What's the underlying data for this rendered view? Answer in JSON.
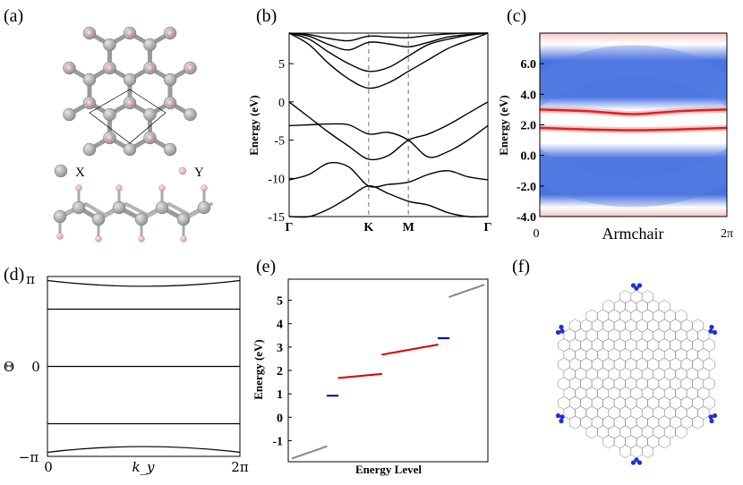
{
  "panels": {
    "a": {
      "label": "(a)",
      "legend": [
        {
          "text": "X",
          "color": "#a8a8a8"
        },
        {
          "text": "Y",
          "color": "#e8b8b8"
        }
      ]
    },
    "b": {
      "label": "(b)"
    },
    "c": {
      "label": "(c)"
    },
    "d": {
      "label": "(d)"
    },
    "e": {
      "label": "(e)"
    },
    "f": {
      "label": "(f)"
    }
  },
  "chart_data": [
    {
      "id": "b",
      "type": "line",
      "title": "",
      "ylabel": "Energy (eV)",
      "xlabel": "",
      "ylim": [
        -15,
        9
      ],
      "yticks": [
        "5",
        "0",
        "-5",
        "-10",
        "-15"
      ],
      "kpoints": [
        "Γ",
        "K",
        "M",
        "Γ"
      ],
      "kpoint_positions": [
        0,
        0.4,
        0.6,
        1.0
      ],
      "series": [
        {
          "name": "band1",
          "x": [
            0,
            0.1,
            0.2,
            0.3,
            0.4,
            0.5,
            0.6,
            0.7,
            0.8,
            0.9,
            1.0
          ],
          "y": [
            0,
            -2.0,
            -4.0,
            -5.8,
            -7.5,
            -7.0,
            -5.0,
            -4.2,
            -3.0,
            -1.5,
            0
          ]
        },
        {
          "name": "band2",
          "x": [
            0,
            0.1,
            0.2,
            0.3,
            0.4,
            0.5,
            0.6,
            0.7,
            0.8,
            0.9,
            1.0
          ],
          "y": [
            -3.1,
            -3.0,
            -2.9,
            -3.0,
            -4.2,
            -4.0,
            -5.0,
            -7.2,
            -6.5,
            -5.0,
            -3.1
          ]
        },
        {
          "name": "band3",
          "x": [
            0,
            0.1,
            0.2,
            0.3,
            0.4,
            0.5,
            0.6,
            0.7,
            0.8,
            0.9,
            1.0
          ],
          "y": [
            -10.2,
            -9.5,
            -8.0,
            -8.5,
            -11.0,
            -10.8,
            -10.5,
            -9.5,
            -9.0,
            -9.8,
            -10.2
          ]
        },
        {
          "name": "band4",
          "x": [
            0,
            0.1,
            0.2,
            0.3,
            0.4,
            0.5,
            0.6,
            0.7,
            0.8,
            0.9,
            1.0
          ],
          "y": [
            -15.0,
            -15.0,
            -14.0,
            -12.5,
            -11.0,
            -12.0,
            -13.0,
            -13.5,
            -14.5,
            -15.0,
            -15.0
          ]
        },
        {
          "name": "cb1",
          "x": [
            0,
            0.1,
            0.2,
            0.3,
            0.4,
            0.5,
            0.6,
            0.7,
            0.8,
            0.9,
            1.0
          ],
          "y": [
            9,
            7.5,
            5.0,
            3.0,
            1.8,
            2.5,
            4.0,
            5.5,
            7.0,
            8.0,
            9
          ]
        },
        {
          "name": "cb2",
          "x": [
            0,
            0.1,
            0.2,
            0.3,
            0.4,
            0.5,
            0.6,
            0.7,
            0.8,
            0.9,
            1.0
          ],
          "y": [
            9,
            8.2,
            6.5,
            5.0,
            4.0,
            4.5,
            6.0,
            7.5,
            8.2,
            8.7,
            9
          ]
        },
        {
          "name": "cb3",
          "x": [
            0,
            0.1,
            0.2,
            0.3,
            0.4,
            0.5,
            0.6,
            0.7,
            0.8,
            0.9,
            1.0
          ],
          "y": [
            9,
            8.6,
            7.5,
            6.8,
            7.8,
            7.6,
            7.2,
            7.8,
            8.5,
            8.8,
            9
          ]
        },
        {
          "name": "cb4",
          "x": [
            0,
            0.1,
            0.2,
            0.3,
            0.4,
            0.5,
            0.6,
            0.7,
            0.8,
            0.9,
            1.0
          ],
          "y": [
            9,
            8.8,
            8.3,
            8.0,
            8.6,
            8.5,
            8.4,
            8.7,
            8.9,
            9.0,
            9
          ]
        }
      ]
    },
    {
      "id": "c",
      "type": "heatmap",
      "ylabel": "Energy (eV)",
      "xlabel": "Armchair",
      "xticks": [
        "0",
        "2π"
      ],
      "yticks": [
        "6.0",
        "4.0",
        "2.0",
        "0.0",
        "-2.0",
        "-4.0"
      ],
      "ylim": [
        -4,
        8
      ],
      "edge_states": [
        {
          "x": [
            0,
            0.25,
            0.5,
            0.75,
            1.0
          ],
          "y": [
            3.0,
            2.9,
            2.7,
            2.9,
            3.0
          ]
        },
        {
          "x": [
            0,
            0.25,
            0.5,
            0.75,
            1.0
          ],
          "y": [
            1.8,
            1.7,
            1.65,
            1.7,
            1.8
          ]
        }
      ]
    },
    {
      "id": "d",
      "type": "line",
      "ylabel": "Θ",
      "xlabel": "k_y",
      "xticks": [
        "0",
        "2π"
      ],
      "yticks": [
        "π",
        "0",
        "−π"
      ],
      "ylim": [
        -3.1416,
        3.1416
      ],
      "series": [
        {
          "name": "w1",
          "x": [
            0,
            0.5,
            1.0
          ],
          "y": [
            3.0,
            2.8,
            3.0
          ]
        },
        {
          "name": "w2",
          "x": [
            0,
            0.5,
            1.0
          ],
          "y": [
            2.0,
            2.0,
            2.0
          ]
        },
        {
          "name": "w3",
          "x": [
            0,
            0.5,
            1.0
          ],
          "y": [
            0,
            0,
            0
          ]
        },
        {
          "name": "w4",
          "x": [
            0,
            0.5,
            1.0
          ],
          "y": [
            -2.0,
            -2.0,
            -2.0
          ]
        },
        {
          "name": "w5",
          "x": [
            0,
            0.5,
            1.0
          ],
          "y": [
            -3.0,
            -2.8,
            -3.0
          ]
        }
      ]
    },
    {
      "id": "e",
      "type": "scatter",
      "ylabel": "Energy (eV)",
      "xlabel": "Energy Level",
      "yticks": [
        "5",
        "4",
        "3",
        "2",
        "1",
        "0",
        "-1"
      ],
      "ylim": [
        -1.9,
        5.9
      ],
      "series": [
        {
          "name": "bulk-low",
          "color": "#888888",
          "x": [
            0,
            30
          ],
          "y": [
            -1.75,
            -1.25
          ]
        },
        {
          "name": "corner-1",
          "color": "#0000cc",
          "x": [
            31,
            40
          ],
          "y": [
            0.92,
            0.92
          ]
        },
        {
          "name": "edge-1",
          "color": "#dd0000",
          "x": [
            41,
            79
          ],
          "y": [
            1.68,
            1.85
          ]
        },
        {
          "name": "edge-2",
          "color": "#dd0000",
          "x": [
            80,
            129
          ],
          "y": [
            2.68,
            3.1
          ]
        },
        {
          "name": "corner-2",
          "color": "#0000cc",
          "x": [
            130,
            139
          ],
          "y": [
            3.38,
            3.38
          ]
        },
        {
          "name": "bulk-high",
          "color": "#888888",
          "x": [
            140,
            170
          ],
          "y": [
            5.15,
            5.65
          ]
        }
      ]
    }
  ]
}
